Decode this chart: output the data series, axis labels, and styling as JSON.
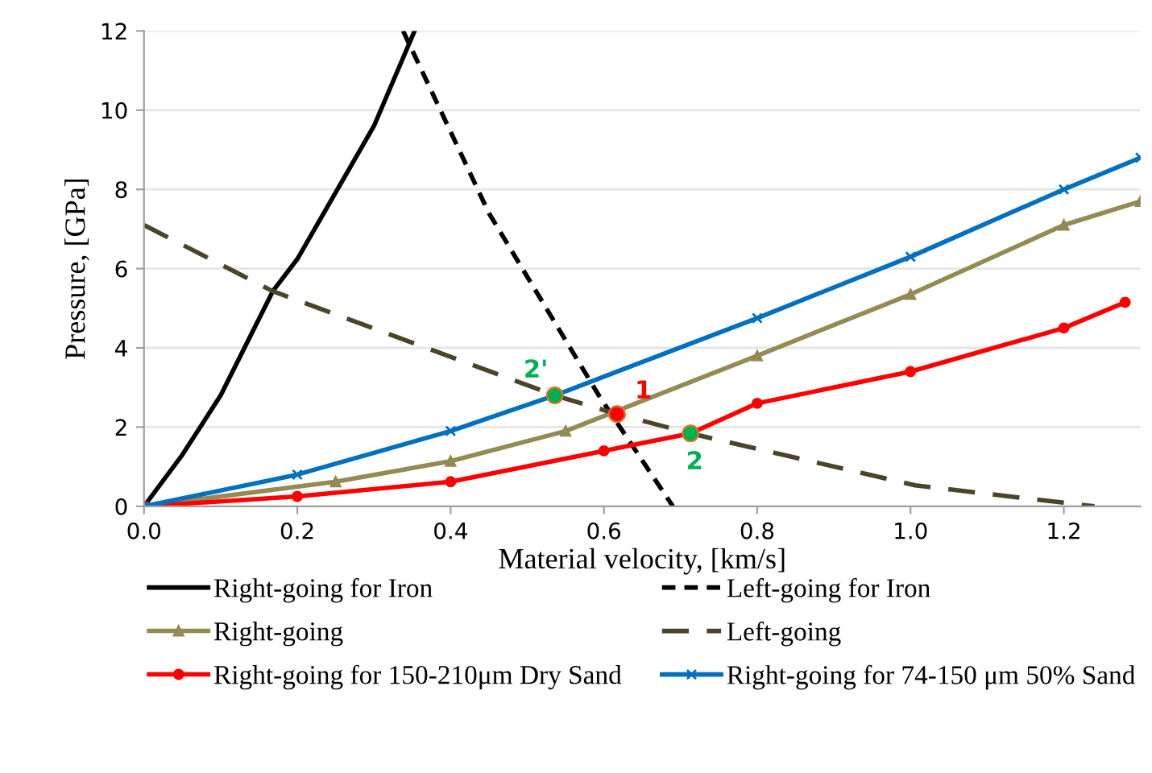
{
  "chart_data": {
    "type": "line",
    "xlabel": "Material velocity, [km/s]",
    "ylabel": "Pressure, [GPa]",
    "xlim": [
      0,
      1.3
    ],
    "ylim": [
      0,
      12
    ],
    "xticks": [
      {
        "value": 0,
        "label": "0.0"
      },
      0.2,
      0.4,
      0.6,
      0.8,
      {
        "value": 1,
        "label": "1.0"
      },
      1.2
    ],
    "yticks": [
      0,
      2,
      4,
      6,
      8,
      10,
      12
    ],
    "grid": "y",
    "legend": "bottom",
    "series": [
      {
        "name": "Right-going for Iron",
        "color": "#000000",
        "line_style": "solid",
        "marker": "none",
        "x": [
          0,
          0.05,
          0.1,
          0.168,
          0.2,
          0.3,
          0.353
        ],
        "values": [
          0,
          1.3,
          2.8,
          5.43,
          6.24,
          9.6,
          12
        ]
      },
      {
        "name": "Left-going for Iron",
        "color": "#000000",
        "line_style": "dotted",
        "marker": "none",
        "x": [
          0.338,
          0.45,
          0.594,
          0.69
        ],
        "values": [
          12,
          7.4,
          2.78,
          0
        ]
      },
      {
        "name": "Right-going",
        "color": "#948a54",
        "line_style": "solid",
        "marker": "triangle",
        "x": [
          0,
          0.25,
          0.4,
          0.55,
          0.8,
          1.0,
          1.2,
          1.3
        ],
        "values": [
          0,
          0.62,
          1.14,
          1.9,
          3.8,
          5.35,
          7.1,
          7.7
        ]
      },
      {
        "name": "Left-going",
        "color": "#4a452a",
        "line_style": "dashed",
        "marker": "none",
        "x": [
          0,
          0.168,
          0.536,
          0.617,
          0.713,
          1.006,
          1.24
        ],
        "values": [
          7.1,
          5.43,
          2.8,
          2.33,
          1.84,
          0.53,
          0
        ]
      },
      {
        "name": "Right-going for 150-210μm Dry Sand",
        "color": "#ff0000",
        "line_style": "solid",
        "marker": "circle",
        "x": [
          0,
          0.2,
          0.4,
          0.6,
          0.713,
          0.8,
          1.0,
          1.2,
          1.28
        ],
        "values": [
          0,
          0.25,
          0.62,
          1.4,
          1.84,
          2.6,
          3.4,
          4.5,
          5.15
        ]
      },
      {
        "name": "Right-going for 74-150 μm 50% Sand",
        "color": "#0070c0",
        "line_style": "solid",
        "marker": "cross",
        "x": [
          0,
          0.2,
          0.4,
          0.536,
          0.8,
          1.0,
          1.2,
          1.3
        ],
        "values": [
          0,
          0.8,
          1.9,
          2.8,
          4.75,
          6.3,
          8.0,
          8.8
        ]
      },
      {
        "type": "scatter",
        "marker": "circle",
        "colors": [
          "#00b050",
          "#ff0000",
          "#00b050"
        ],
        "x": [
          0.536,
          0.617,
          0.713
        ],
        "values": [
          2.8,
          2.33,
          1.84
        ]
      }
    ],
    "annotations": [
      {
        "text": "2'",
        "x": 0.536,
        "y": 2.8
      },
      {
        "text": "1",
        "x": 0.617,
        "y": 2.33
      },
      {
        "text": "2",
        "x": 0.713,
        "y": 1.84
      }
    ]
  }
}
